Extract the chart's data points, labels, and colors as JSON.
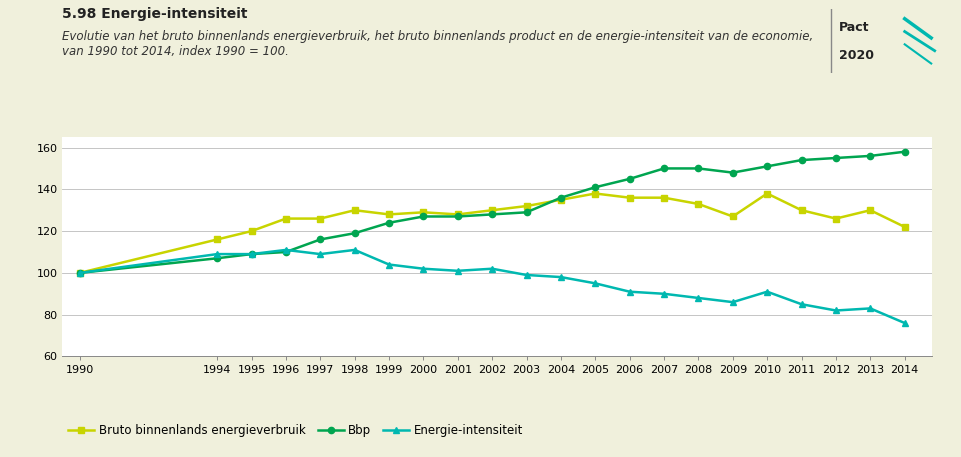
{
  "title": "5.98 Energie-intensiteit",
  "subtitle": "Evolutie van het bruto binnenlands energieverbruik, het bruto binnenlands product en de energie-intensiteit van de economie,\nvan 1990 tot 2014, index 1990 = 100.",
  "years": [
    1990,
    1994,
    1995,
    1996,
    1997,
    1998,
    1999,
    2000,
    2001,
    2002,
    2003,
    2004,
    2005,
    2006,
    2007,
    2008,
    2009,
    2010,
    2011,
    2012,
    2013,
    2014
  ],
  "energie_verbruik": [
    100,
    116,
    120,
    126,
    126,
    130,
    128,
    129,
    128,
    130,
    132,
    135,
    138,
    136,
    136,
    133,
    127,
    138,
    130,
    126,
    130,
    122
  ],
  "bbp": [
    100,
    107,
    109,
    110,
    116,
    119,
    124,
    127,
    127,
    128,
    129,
    136,
    141,
    145,
    150,
    150,
    148,
    151,
    154,
    155,
    156,
    158
  ],
  "energie_intensiteit": [
    100,
    109,
    109,
    111,
    109,
    111,
    104,
    102,
    101,
    102,
    99,
    98,
    95,
    91,
    90,
    88,
    86,
    91,
    85,
    82,
    83,
    76
  ],
  "bg_color": "#f0f0dc",
  "plot_bg": "#ffffff",
  "energie_verbruik_color": "#c8d400",
  "bbp_color": "#00a550",
  "energie_intensiteit_color": "#00b8b0",
  "ylim": [
    60,
    165
  ],
  "yticks": [
    60,
    80,
    100,
    120,
    140,
    160
  ],
  "legend_labels": [
    "Bruto binnenlands energieverbruik",
    "Bbp",
    "Energie-intensiteit"
  ],
  "title_fontsize": 10,
  "subtitle_fontsize": 8.5,
  "axis_fontsize": 8
}
